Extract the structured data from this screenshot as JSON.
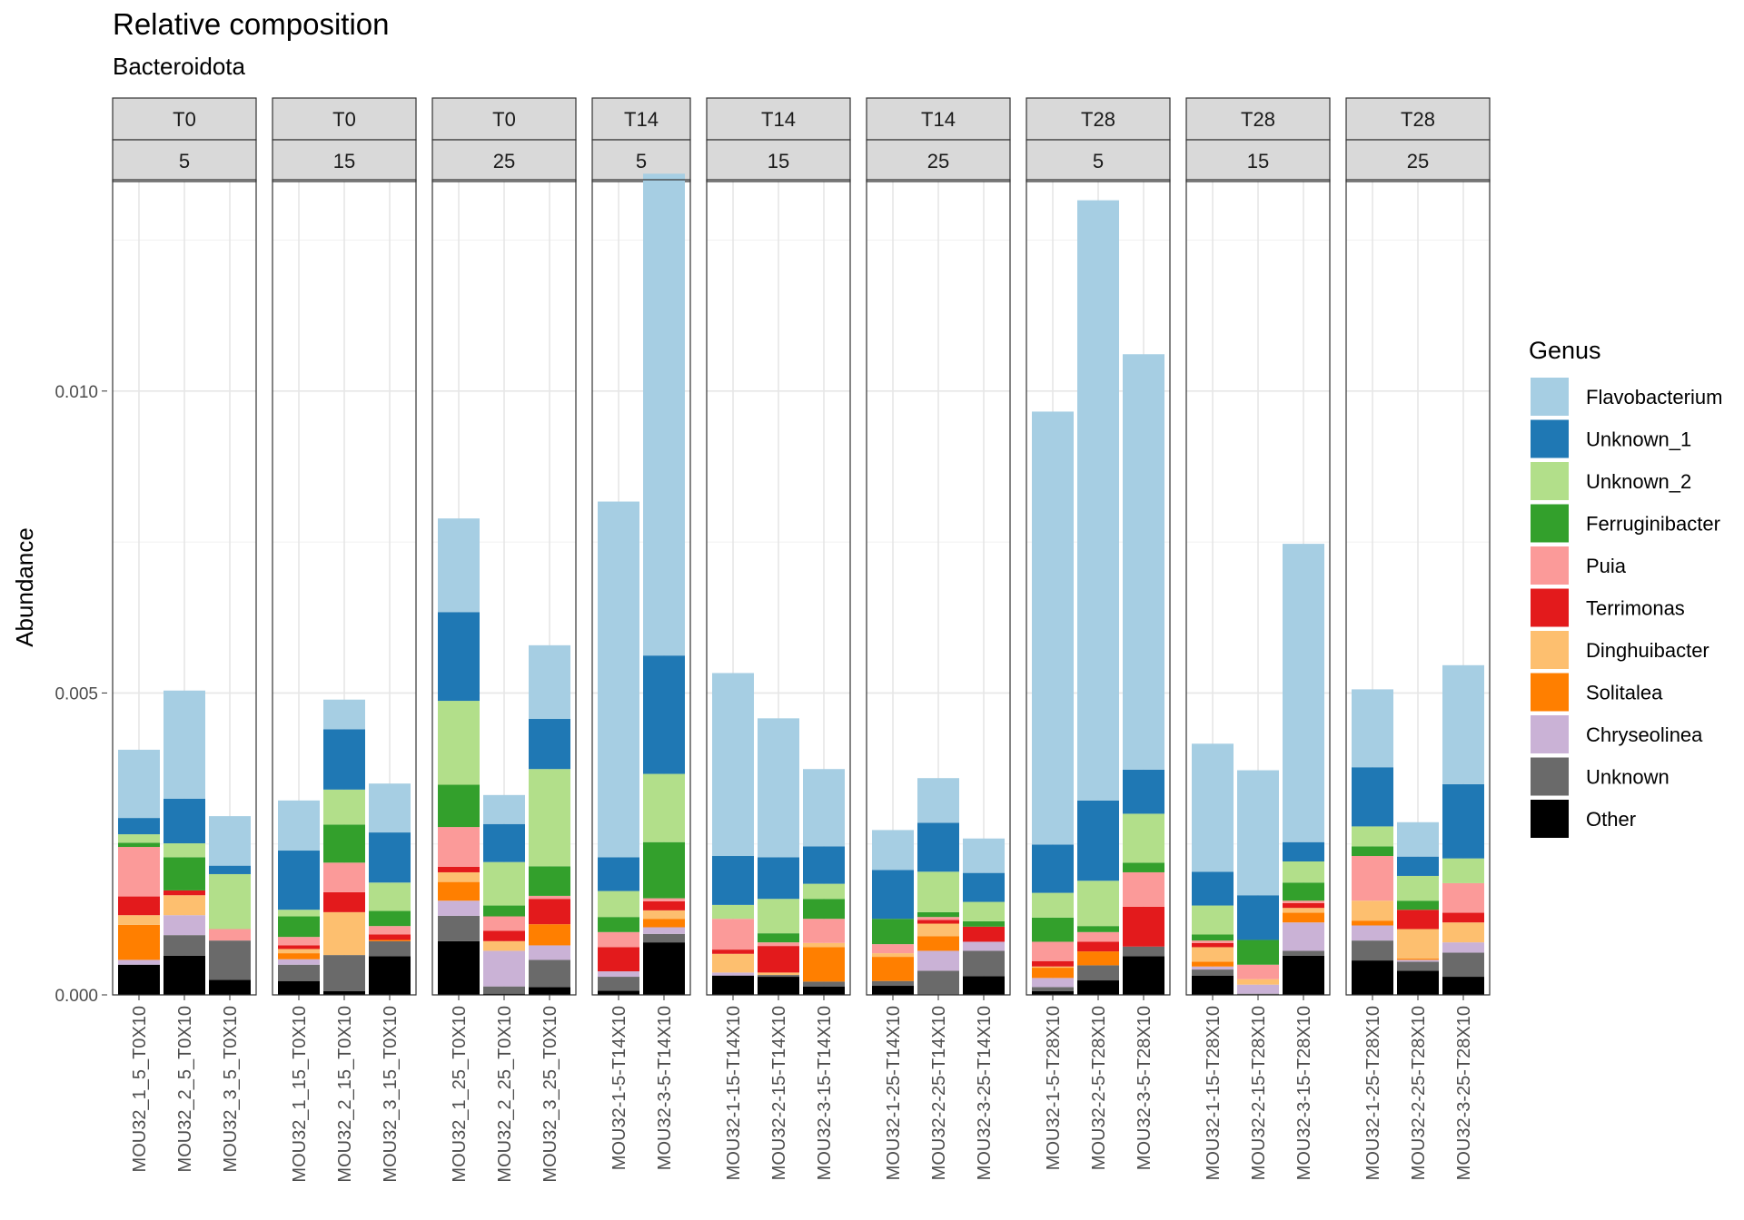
{
  "chart_data": {
    "type": "bar",
    "stacked": true,
    "title": "Relative composition",
    "subtitle": "Bacteroidota",
    "ylabel": "Abundance",
    "xlabel": "",
    "ylim": [
      0,
      0.0135
    ],
    "y_ticks": [
      "0.000",
      "0.005",
      "0.010"
    ],
    "y_tick_values": [
      0,
      0.005,
      0.01
    ],
    "grid": true,
    "legend": {
      "title": "Genus",
      "placement": "right",
      "entries": [
        "Flavobacterium",
        "Unknown_1",
        "Unknown_2",
        "Ferruginibacter",
        "Puia",
        "Terrimonas",
        "Dinghuibacter",
        "Solitalea",
        "Chryseolinea",
        "Unknown",
        "Other"
      ]
    },
    "colors": {
      "Flavobacterium": "#A6CEE3",
      "Unknown_1": "#1F78B4",
      "Unknown_2": "#B2DF8A",
      "Ferruginibacter": "#33A02C",
      "Puia": "#FB9A99",
      "Terrimonas": "#E31A1C",
      "Dinghuibacter": "#FDBF6F",
      "Solitalea": "#FF7F00",
      "Chryseolinea": "#CAB2D6",
      "Unknown": "#6A6A6A",
      "Other": "#000000"
    },
    "stack_order_bottom_to_top": [
      "Other",
      "Unknown",
      "Chryseolinea",
      "Solitalea",
      "Dinghuibacter",
      "Terrimonas",
      "Puia",
      "Ferruginibacter",
      "Unknown_2",
      "Unknown_1",
      "Flavobacterium"
    ],
    "panels": [
      {
        "time": "T0",
        "level": "5",
        "samples": [
          {
            "name": "MOU32_1_5_T0X10",
            "values": {
              "Other": 0.0005,
              "Unknown": 0.0,
              "Chryseolinea": 8e-05,
              "Solitalea": 0.00058,
              "Dinghuibacter": 0.00016,
              "Terrimonas": 0.00031,
              "Puia": 0.00082,
              "Ferruginibacter": 7e-05,
              "Unknown_2": 0.00014,
              "Unknown_1": 0.00027,
              "Flavobacterium": 0.00113
            }
          },
          {
            "name": "MOU32_2_5_T0X10",
            "values": {
              "Other": 0.00065,
              "Unknown": 0.00034,
              "Chryseolinea": 0.00033,
              "Solitalea": 0.0,
              "Dinghuibacter": 0.00033,
              "Terrimonas": 8e-05,
              "Puia": 0.0,
              "Ferruginibacter": 0.00055,
              "Unknown_2": 0.00023,
              "Unknown_1": 0.00074,
              "Flavobacterium": 0.00179
            }
          },
          {
            "name": "MOU32_3_5_T0X10",
            "values": {
              "Other": 0.00025,
              "Unknown": 0.00065,
              "Chryseolinea": 0.0,
              "Solitalea": 0.0,
              "Dinghuibacter": 0.0,
              "Terrimonas": 0.0,
              "Puia": 0.00019,
              "Ferruginibacter": 0.0,
              "Unknown_2": 0.00091,
              "Unknown_1": 0.00014,
              "Flavobacterium": 0.00082
            }
          }
        ]
      },
      {
        "time": "T0",
        "level": "15",
        "samples": [
          {
            "name": "MOU32_1_15_T0X10",
            "values": {
              "Other": 0.00023,
              "Unknown": 0.00027,
              "Chryseolinea": 9e-05,
              "Solitalea": 0.0001,
              "Dinghuibacter": 7e-05,
              "Terrimonas": 6e-05,
              "Puia": 0.00014,
              "Ferruginibacter": 0.00034,
              "Unknown_2": 0.00011,
              "Unknown_1": 0.00098,
              "Flavobacterium": 0.00083
            }
          },
          {
            "name": "MOU32_2_15_T0X10",
            "values": {
              "Other": 6e-05,
              "Unknown": 0.0006,
              "Chryseolinea": 0.0,
              "Solitalea": 0.0,
              "Dinghuibacter": 0.00071,
              "Terrimonas": 0.00033,
              "Puia": 0.00049,
              "Ferruginibacter": 0.00063,
              "Unknown_2": 0.00058,
              "Unknown_1": 0.001,
              "Flavobacterium": 0.00049
            }
          },
          {
            "name": "MOU32_3_15_T0X10",
            "values": {
              "Other": 0.00064,
              "Unknown": 0.00025,
              "Chryseolinea": 0.0,
              "Solitalea": 2e-05,
              "Dinghuibacter": 0.0,
              "Terrimonas": 9e-05,
              "Puia": 0.00014,
              "Ferruginibacter": 0.00025,
              "Unknown_2": 0.00047,
              "Unknown_1": 0.00083,
              "Flavobacterium": 0.00081
            }
          }
        ]
      },
      {
        "time": "T0",
        "level": "25",
        "samples": [
          {
            "name": "MOU32_1_25_T0X10",
            "values": {
              "Other": 0.00089,
              "Unknown": 0.00042,
              "Chryseolinea": 0.00025,
              "Solitalea": 0.00031,
              "Dinghuibacter": 0.00016,
              "Terrimonas": 9e-05,
              "Puia": 0.00066,
              "Ferruginibacter": 0.0007,
              "Unknown_2": 0.00139,
              "Unknown_1": 0.00147,
              "Flavobacterium": 0.00155
            }
          },
          {
            "name": "MOU32_2_25_T0X10",
            "values": {
              "Other": 2e-05,
              "Unknown": 0.00012,
              "Chryseolinea": 0.00059,
              "Solitalea": 0.0,
              "Dinghuibacter": 0.00016,
              "Terrimonas": 0.00017,
              "Puia": 0.00024,
              "Ferruginibacter": 0.00018,
              "Unknown_2": 0.00072,
              "Unknown_1": 0.00063,
              "Flavobacterium": 0.00048
            }
          },
          {
            "name": "MOU32_3_25_T0X10",
            "values": {
              "Other": 0.00013,
              "Unknown": 0.00045,
              "Chryseolinea": 0.00024,
              "Solitalea": 0.00035,
              "Dinghuibacter": 0.0,
              "Terrimonas": 0.00042,
              "Puia": 5e-05,
              "Ferruginibacter": 0.00049,
              "Unknown_2": 0.00161,
              "Unknown_1": 0.00083,
              "Flavobacterium": 0.00122
            }
          }
        ]
      },
      {
        "time": "T14",
        "level": "5",
        "samples": [
          {
            "name": "MOU32-1-5-T14X10",
            "values": {
              "Other": 7e-05,
              "Unknown": 0.00023,
              "Chryseolinea": 9e-05,
              "Solitalea": 0.0,
              "Dinghuibacter": 0.0,
              "Terrimonas": 0.0004,
              "Puia": 0.00025,
              "Ferruginibacter": 0.00025,
              "Unknown_2": 0.00043,
              "Unknown_1": 0.00056,
              "Flavobacterium": 0.00589
            }
          },
          {
            "name": "MOU32-3-5-T14X10",
            "values": {
              "Other": 0.00087,
              "Unknown": 0.00014,
              "Chryseolinea": 0.00011,
              "Solitalea": 0.00014,
              "Dinghuibacter": 0.00014,
              "Terrimonas": 0.00015,
              "Puia": 5e-05,
              "Ferruginibacter": 0.00093,
              "Unknown_2": 0.00113,
              "Unknown_1": 0.00196,
              "Flavobacterium": 0.00798
            }
          }
        ]
      },
      {
        "time": "T14",
        "level": "15",
        "samples": [
          {
            "name": "MOU32-1-15-T14X10",
            "values": {
              "Other": 0.00032,
              "Unknown": 0.0,
              "Chryseolinea": 5e-05,
              "Solitalea": 0.0,
              "Dinghuibacter": 0.00031,
              "Terrimonas": 7e-05,
              "Puia": 0.00051,
              "Ferruginibacter": 0.0,
              "Unknown_2": 0.00023,
              "Unknown_1": 0.00081,
              "Flavobacterium": 0.00303
            }
          },
          {
            "name": "MOU32-2-15-T14X10",
            "values": {
              "Other": 0.0003,
              "Unknown": 3e-05,
              "Chryseolinea": 0.0,
              "Solitalea": 0.0,
              "Dinghuibacter": 4e-05,
              "Terrimonas": 0.00044,
              "Puia": 6e-05,
              "Ferruginibacter": 0.00015,
              "Unknown_2": 0.00057,
              "Unknown_1": 0.00069,
              "Flavobacterium": 0.0023
            }
          },
          {
            "name": "MOU32-3-15-T14X10",
            "values": {
              "Other": 0.00014,
              "Unknown": 8e-05,
              "Chryseolinea": 0.0,
              "Solitalea": 0.00057,
              "Dinghuibacter": 7e-05,
              "Terrimonas": 0.0,
              "Puia": 0.0004,
              "Ferruginibacter": 0.00033,
              "Unknown_2": 0.00025,
              "Unknown_1": 0.00062,
              "Flavobacterium": 0.00128
            }
          }
        ]
      },
      {
        "time": "T14",
        "level": "25",
        "samples": [
          {
            "name": "MOU32-1-25-T14X10",
            "values": {
              "Other": 0.00015,
              "Unknown": 8e-05,
              "Chryseolinea": 0.0,
              "Solitalea": 0.0004,
              "Dinghuibacter": 6e-05,
              "Terrimonas": 0.0,
              "Puia": 0.00015,
              "Ferruginibacter": 0.00042,
              "Unknown_2": 0.0,
              "Unknown_1": 0.00081,
              "Flavobacterium": 0.00066
            }
          },
          {
            "name": "MOU32-2-25-T14X10",
            "values": {
              "Other": 0.0,
              "Unknown": 0.0004,
              "Chryseolinea": 0.00033,
              "Solitalea": 0.00024,
              "Dinghuibacter": 0.00021,
              "Terrimonas": 6e-05,
              "Puia": 5e-05,
              "Ferruginibacter": 8e-05,
              "Unknown_2": 0.00067,
              "Unknown_1": 0.00081,
              "Flavobacterium": 0.00074
            }
          },
          {
            "name": "MOU32-3-25-T14X10",
            "values": {
              "Other": 0.00031,
              "Unknown": 0.00042,
              "Chryseolinea": 0.00015,
              "Solitalea": 0.0,
              "Dinghuibacter": 0.0,
              "Terrimonas": 0.00025,
              "Puia": 0.0,
              "Ferruginibacter": 9e-05,
              "Unknown_2": 0.00032,
              "Unknown_1": 0.00048,
              "Flavobacterium": 0.00057
            }
          }
        ]
      },
      {
        "time": "T28",
        "level": "5",
        "samples": [
          {
            "name": "MOU32-1-5-T28X10",
            "values": {
              "Other": 6e-05,
              "Unknown": 7e-05,
              "Chryseolinea": 0.00015,
              "Solitalea": 0.00017,
              "Dinghuibacter": 2e-05,
              "Terrimonas": 9e-05,
              "Puia": 0.00032,
              "Ferruginibacter": 0.0004,
              "Unknown_2": 0.00041,
              "Unknown_1": 0.0008,
              "Flavobacterium": 0.00717
            }
          },
          {
            "name": "MOU32-2-5-T28X10",
            "values": {
              "Other": 0.00024,
              "Unknown": 0.00025,
              "Chryseolinea": 0.0,
              "Solitalea": 0.00023,
              "Dinghuibacter": 0.0,
              "Terrimonas": 0.00016,
              "Puia": 0.00016,
              "Ferruginibacter": 0.0001,
              "Unknown_2": 0.00075,
              "Unknown_1": 0.00133,
              "Flavobacterium": 0.00994
            }
          },
          {
            "name": "MOU32-3-5-T28X10",
            "values": {
              "Other": 0.00064,
              "Unknown": 0.00016,
              "Chryseolinea": 0.0,
              "Solitalea": 0.0,
              "Dinghuibacter": 0.0,
              "Terrimonas": 0.00066,
              "Puia": 0.00057,
              "Ferruginibacter": 0.00016,
              "Unknown_2": 0.00081,
              "Unknown_1": 0.00073,
              "Flavobacterium": 0.00688
            }
          }
        ]
      },
      {
        "time": "T28",
        "level": "15",
        "samples": [
          {
            "name": "MOU32-1-15-T28X10",
            "values": {
              "Other": 0.00032,
              "Unknown": 0.0001,
              "Chryseolinea": 5e-05,
              "Solitalea": 8e-05,
              "Dinghuibacter": 0.00024,
              "Terrimonas": 7e-05,
              "Puia": 4e-05,
              "Ferruginibacter": 0.0001,
              "Unknown_2": 0.00048,
              "Unknown_1": 0.00056,
              "Flavobacterium": 0.00212
            }
          },
          {
            "name": "MOU32-2-15-T28X10",
            "values": {
              "Other": 0.0,
              "Unknown": 2e-05,
              "Chryseolinea": 0.00015,
              "Solitalea": 0.0,
              "Dinghuibacter": 9e-05,
              "Terrimonas": 0.0,
              "Puia": 0.00024,
              "Ferruginibacter": 0.00041,
              "Unknown_2": 0.0,
              "Unknown_1": 0.00074,
              "Flavobacterium": 0.00207
            }
          },
          {
            "name": "MOU32-3-15-T28X10",
            "values": {
              "Other": 0.00065,
              "Unknown": 8e-05,
              "Chryseolinea": 0.00047,
              "Solitalea": 0.00016,
              "Dinghuibacter": 8e-05,
              "Terrimonas": 8e-05,
              "Puia": 4e-05,
              "Ferruginibacter": 0.0003,
              "Unknown_2": 0.00035,
              "Unknown_1": 0.00032,
              "Flavobacterium": 0.00494
            }
          }
        ]
      },
      {
        "time": "T28",
        "level": "25",
        "samples": [
          {
            "name": "MOU32-1-25-T28X10",
            "values": {
              "Other": 0.00057,
              "Unknown": 0.00033,
              "Chryseolinea": 0.00025,
              "Solitalea": 8e-05,
              "Dinghuibacter": 0.00033,
              "Terrimonas": 0.0,
              "Puia": 0.00074,
              "Ferruginibacter": 0.00016,
              "Unknown_2": 0.00033,
              "Unknown_1": 0.00098,
              "Flavobacterium": 0.00129
            }
          },
          {
            "name": "MOU32-2-25-T28X10",
            "values": {
              "Other": 0.0004,
              "Unknown": 0.00015,
              "Chryseolinea": 3e-05,
              "Solitalea": 2e-05,
              "Dinghuibacter": 0.00049,
              "Terrimonas": 0.00032,
              "Puia": 0.0,
              "Ferruginibacter": 0.00015,
              "Unknown_2": 0.00041,
              "Unknown_1": 0.00032,
              "Flavobacterium": 0.00057
            }
          },
          {
            "name": "MOU32-3-25-T28X10",
            "values": {
              "Other": 0.0003,
              "Unknown": 0.0004,
              "Chryseolinea": 0.00017,
              "Solitalea": 0.0,
              "Dinghuibacter": 0.00033,
              "Terrimonas": 0.00016,
              "Puia": 0.00049,
              "Ferruginibacter": 0.0,
              "Unknown_2": 0.00041,
              "Unknown_1": 0.00123,
              "Flavobacterium": 0.00197
            }
          }
        ]
      }
    ]
  }
}
